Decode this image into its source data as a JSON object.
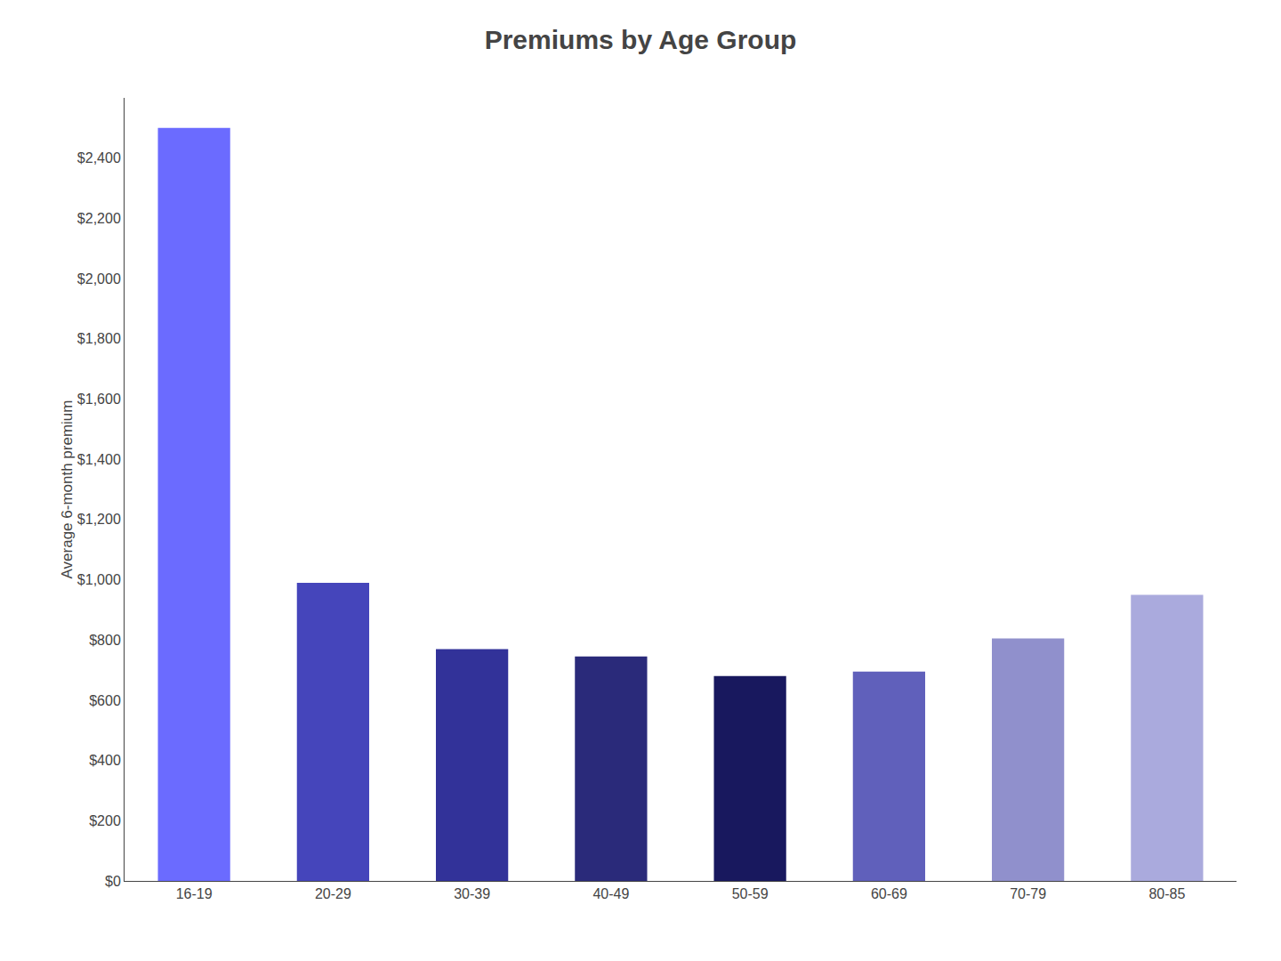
{
  "chart_data": {
    "type": "bar",
    "title": "Premiums by Age Group",
    "ylabel": "Average 6-month premium",
    "categories": [
      "16-19",
      "20-29",
      "30-39",
      "40-49",
      "50-59",
      "60-69",
      "70-79",
      "80-85"
    ],
    "values": [
      2500,
      990,
      770,
      745,
      680,
      695,
      805,
      950
    ],
    "colors": [
      "#6b6bff",
      "#4545bb",
      "#323299",
      "#2a2a7a",
      "#18185e",
      "#6060bb",
      "#9090cc",
      "#aaaadd"
    ],
    "ylim": [
      0,
      2600
    ],
    "yticks": [
      {
        "value": 0,
        "label": "$0"
      },
      {
        "value": 200,
        "label": "$200"
      },
      {
        "value": 400,
        "label": "$400"
      },
      {
        "value": 600,
        "label": "$600"
      },
      {
        "value": 800,
        "label": "$800"
      },
      {
        "value": 1000,
        "label": "$1,000"
      },
      {
        "value": 1200,
        "label": "$1,200"
      },
      {
        "value": 1400,
        "label": "$1,400"
      },
      {
        "value": 1600,
        "label": "$1,600"
      },
      {
        "value": 1800,
        "label": "$1,800"
      },
      {
        "value": 2000,
        "label": "$2,000"
      },
      {
        "value": 2200,
        "label": "$2,200"
      },
      {
        "value": 2400,
        "label": "$2,400"
      }
    ],
    "grid": false
  }
}
